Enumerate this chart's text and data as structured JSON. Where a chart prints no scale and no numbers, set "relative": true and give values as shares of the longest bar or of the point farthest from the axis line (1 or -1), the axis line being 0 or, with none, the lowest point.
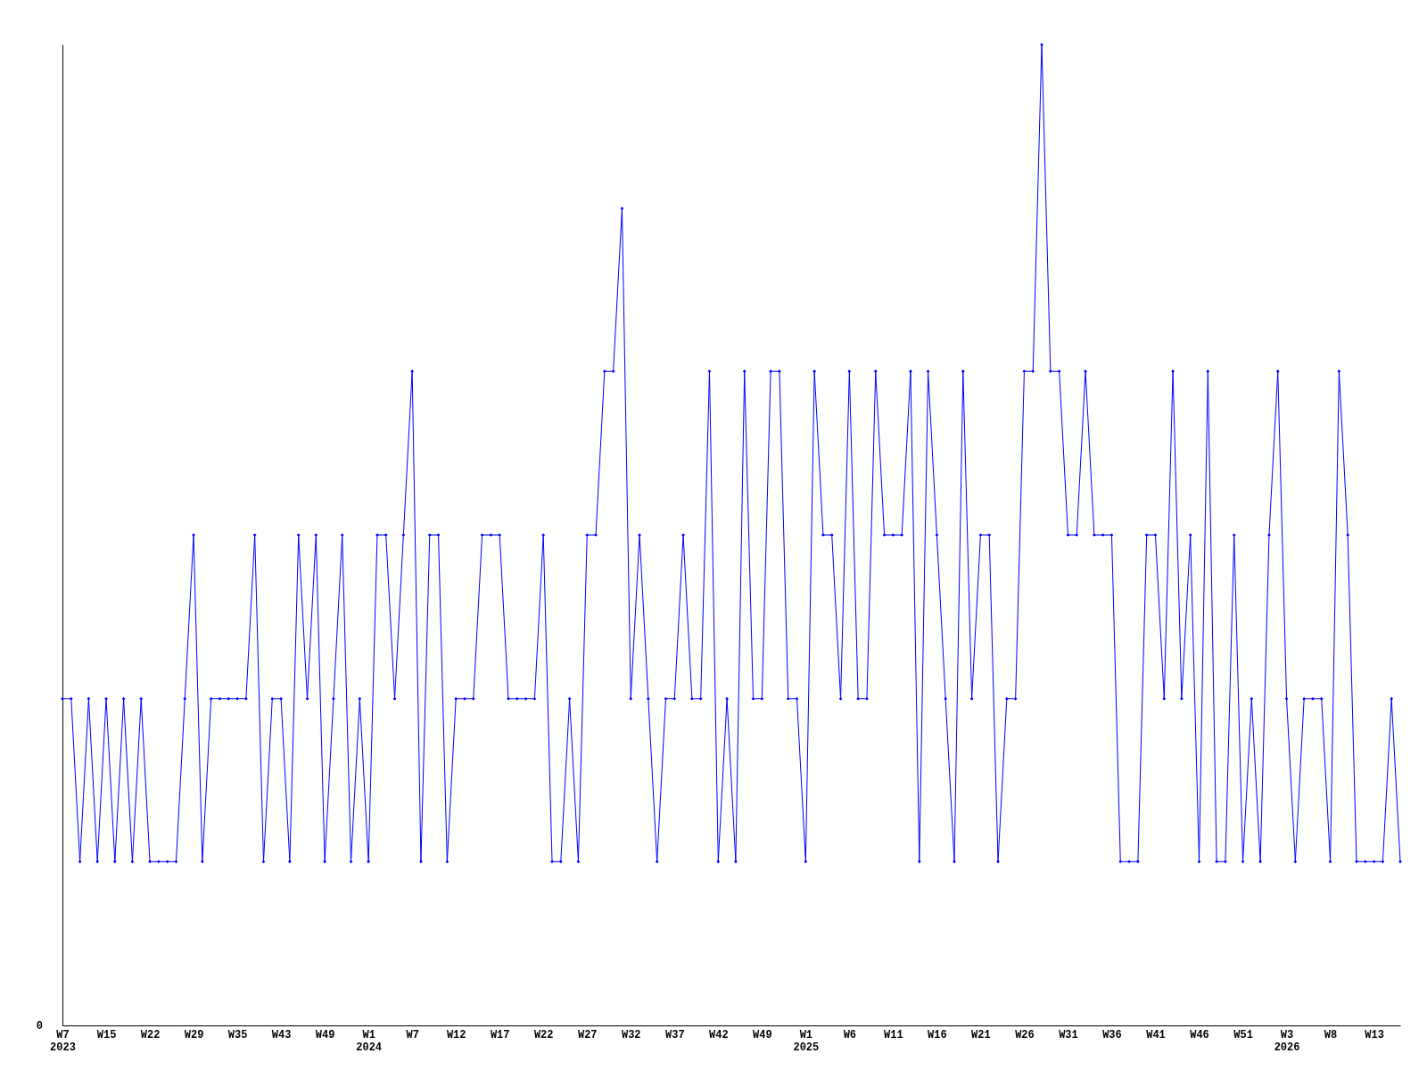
{
  "chart_data": {
    "type": "line",
    "relative": true,
    "marker": "diamond",
    "line_style": "solid",
    "grid": false,
    "annotations": [
      "0"
    ],
    "categories": [
      "W7\n2023",
      null,
      null,
      null,
      null,
      "W15",
      null,
      null,
      null,
      null,
      "W22",
      null,
      null,
      null,
      null,
      "W29",
      null,
      null,
      null,
      null,
      "W35",
      null,
      null,
      null,
      null,
      "W43",
      null,
      null,
      null,
      null,
      "W49",
      null,
      null,
      null,
      null,
      "W1\n2024",
      null,
      null,
      null,
      null,
      "W7",
      null,
      null,
      null,
      null,
      "W12",
      null,
      null,
      null,
      null,
      "W17",
      null,
      null,
      null,
      null,
      "W22",
      null,
      null,
      null,
      null,
      "W27",
      null,
      null,
      null,
      null,
      "W32",
      null,
      null,
      null,
      null,
      "W37",
      null,
      null,
      null,
      null,
      "W42",
      null,
      null,
      null,
      null,
      "W49",
      null,
      null,
      null,
      null,
      "W1\n2025",
      null,
      null,
      null,
      null,
      "W6",
      null,
      null,
      null,
      null,
      "W11",
      null,
      null,
      null,
      null,
      "W16",
      null,
      null,
      null,
      null,
      "W21",
      null,
      null,
      null,
      null,
      "W26",
      null,
      null,
      null,
      null,
      "W31",
      null,
      null,
      null,
      null,
      "W36",
      null,
      null,
      null,
      null,
      "W41",
      null,
      null,
      null,
      null,
      "W46",
      null,
      null,
      null,
      null,
      "W51",
      null,
      null,
      null,
      null,
      "W3\n2026",
      null,
      null,
      null,
      null,
      "W8",
      null,
      null,
      null,
      null,
      "W13",
      null,
      null,
      null
    ],
    "series": [
      {
        "color": "#0000ff",
        "values": [
          0.333,
          0.333,
          0.167,
          0.333,
          0.167,
          0.333,
          0.167,
          0.333,
          0.167,
          0.333,
          0.167,
          0.167,
          0.167,
          0.167,
          0.333,
          0.5,
          0.167,
          0.333,
          0.333,
          0.333,
          0.333,
          0.333,
          0.5,
          0.167,
          0.333,
          0.333,
          0.167,
          0.5,
          0.333,
          0.5,
          0.167,
          0.333,
          0.5,
          0.167,
          0.333,
          0.167,
          0.5,
          0.5,
          0.333,
          0.5,
          0.667,
          0.167,
          0.5,
          0.5,
          0.167,
          0.333,
          0.333,
          0.333,
          0.5,
          0.5,
          0.5,
          0.333,
          0.333,
          0.333,
          0.333,
          0.5,
          0.167,
          0.167,
          0.333,
          0.167,
          0.5,
          0.5,
          0.667,
          0.667,
          0.833,
          0.333,
          0.5,
          0.333,
          0.167,
          0.333,
          0.333,
          0.5,
          0.333,
          0.333,
          0.667,
          0.167,
          0.333,
          0.167,
          0.667,
          0.333,
          0.333,
          0.667,
          0.667,
          0.333,
          0.333,
          0.167,
          0.667,
          0.5,
          0.5,
          0.333,
          0.667,
          0.333,
          0.333,
          0.667,
          0.5,
          0.5,
          0.5,
          0.667,
          0.167,
          0.667,
          0.5,
          0.333,
          0.167,
          0.667,
          0.333,
          0.5,
          0.5,
          0.167,
          0.333,
          0.333,
          0.667,
          0.667,
          1,
          0.667,
          0.667,
          0.5,
          0.5,
          0.667,
          0.5,
          0.5,
          0.5,
          0.167,
          0.167,
          0.167,
          0.5,
          0.5,
          0.333,
          0.667,
          0.333,
          0.5,
          0.167,
          0.667,
          0.167,
          0.167,
          0.5,
          0.167,
          0.333,
          0.167,
          0.5,
          0.667,
          0.333,
          0.167,
          0.333,
          0.333,
          0.333,
          0.167,
          0.667,
          0.5,
          0.167,
          0.167,
          0.167,
          0.167,
          0.333,
          0.167
        ]
      }
    ]
  }
}
